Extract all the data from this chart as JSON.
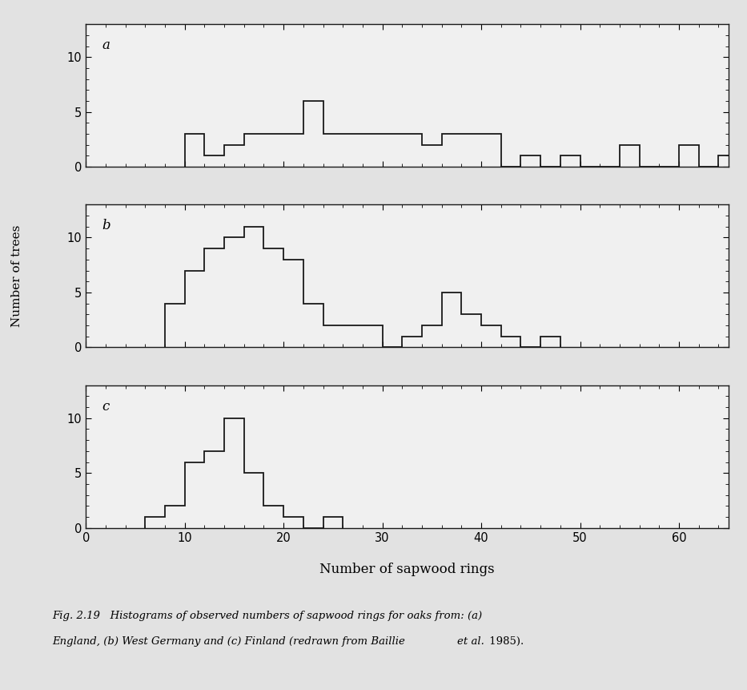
{
  "title_a": "a",
  "title_b": "b",
  "title_c": "c",
  "xlabel": "Number of sapwood rings",
  "ylabel": "Number of trees",
  "xlim": [
    0,
    65
  ],
  "ylim": [
    0,
    13
  ],
  "yticks": [
    0,
    5,
    10
  ],
  "xticks": [
    0,
    10,
    20,
    30,
    40,
    50,
    60
  ],
  "bin_width": 2,
  "hist_a": {
    "bins": [
      10,
      12,
      14,
      16,
      18,
      20,
      22,
      24,
      26,
      28,
      30,
      32,
      34,
      36,
      38,
      40,
      42,
      44,
      46,
      48,
      50,
      52,
      54,
      56,
      58,
      60,
      62,
      64
    ],
    "values": [
      3,
      1,
      2,
      3,
      3,
      3,
      6,
      3,
      3,
      3,
      3,
      3,
      2,
      3,
      3,
      3,
      0,
      1,
      0,
      1,
      0,
      0,
      2,
      0,
      0,
      2,
      0,
      1
    ]
  },
  "hist_b": {
    "bins": [
      8,
      10,
      12,
      14,
      16,
      18,
      20,
      22,
      24,
      26,
      28,
      30,
      32,
      34,
      36,
      38,
      40,
      42,
      44,
      46
    ],
    "values": [
      4,
      7,
      9,
      10,
      11,
      9,
      8,
      4,
      2,
      2,
      2,
      0,
      1,
      2,
      5,
      3,
      2,
      1,
      0,
      1
    ]
  },
  "hist_c": {
    "bins": [
      6,
      8,
      10,
      12,
      14,
      16,
      18,
      20,
      22,
      24
    ],
    "values": [
      1,
      2,
      6,
      7,
      10,
      5,
      2,
      1,
      0,
      1
    ]
  },
  "background_color": "#e2e2e2",
  "face_color": "#f0f0f0",
  "line_color": "#1a1a1a"
}
